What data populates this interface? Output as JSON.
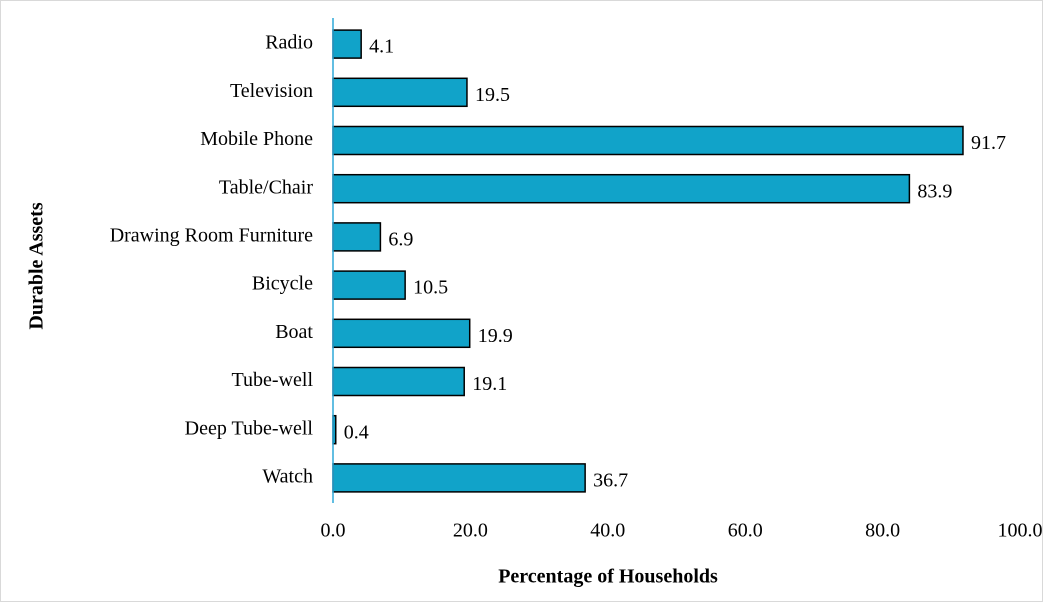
{
  "chart_data": {
    "type": "bar",
    "orientation": "horizontal",
    "x_label": "Percentage of Households",
    "y_label": "Durable Assets",
    "categories": [
      "Radio",
      "Television",
      "Mobile Phone",
      "Table/Chair",
      "Drawing Room Furniture",
      "Bicycle",
      "Boat",
      "Tube-well",
      "Deep Tube-well",
      "Watch"
    ],
    "values": [
      4.1,
      19.5,
      91.7,
      83.9,
      6.9,
      10.5,
      19.9,
      19.1,
      0.4,
      36.7
    ],
    "color": "#11a3c9",
    "xlim": [
      0,
      100
    ],
    "xticks": [
      {
        "value": 0,
        "label": "0.0"
      },
      {
        "value": 20,
        "label": "20.0"
      },
      {
        "value": 40,
        "label": "40.0"
      },
      {
        "value": 60,
        "label": "60.0"
      },
      {
        "value": 80,
        "label": "80.0"
      },
      {
        "value": 100,
        "label": "100.0"
      }
    ],
    "grid": false
  }
}
